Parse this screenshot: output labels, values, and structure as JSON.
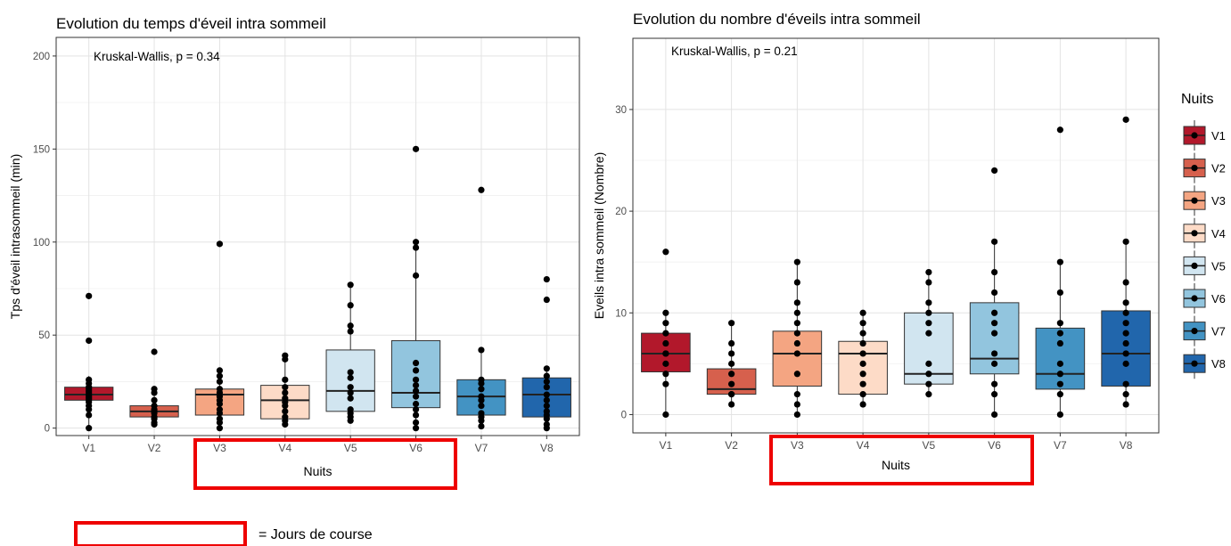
{
  "chart_data": [
    {
      "type": "box",
      "title": "Evolution du temps d'éveil intra sommeil",
      "annotation": "Kruskal-Wallis, p = 0.34",
      "xlabel": "Nuits",
      "ylabel": "Tps d'éveil intrasommeil (min)",
      "ylim": [
        -4,
        210
      ],
      "yticks": [
        0,
        50,
        100,
        150,
        200
      ],
      "grid": true,
      "categories": [
        "V1",
        "V2",
        "V3",
        "V4",
        "V5",
        "V6",
        "V7",
        "V8"
      ],
      "colors": [
        "#B2182B",
        "#D6604D",
        "#F4A582",
        "#FDDBC7",
        "#D1E5F0",
        "#92C5DE",
        "#4393C3",
        "#2166AC"
      ],
      "boxes": [
        {
          "q1": 15,
          "median": 18,
          "q3": 22,
          "lo": 0,
          "hi": 28,
          "points": [
            0,
            7,
            10,
            12,
            14,
            15,
            16,
            17,
            18,
            19,
            20,
            21,
            22,
            24,
            26,
            47,
            71
          ]
        },
        {
          "q1": 6,
          "median": 9,
          "q3": 12,
          "lo": 2,
          "hi": 21,
          "points": [
            2,
            3,
            5,
            6,
            8,
            9,
            10,
            12,
            15,
            19,
            21,
            41
          ]
        },
        {
          "q1": 7,
          "median": 18,
          "q3": 21,
          "lo": 0,
          "hi": 31,
          "points": [
            0,
            3,
            5,
            8,
            10,
            13,
            15,
            17,
            19,
            21,
            25,
            28,
            31,
            99
          ]
        },
        {
          "q1": 5,
          "median": 15,
          "q3": 23,
          "lo": 2,
          "hi": 39,
          "points": [
            2,
            4,
            6,
            9,
            12,
            14,
            16,
            19,
            22,
            26,
            37,
            39
          ]
        },
        {
          "q1": 9,
          "median": 20,
          "q3": 42,
          "lo": 4,
          "hi": 77,
          "points": [
            4,
            6,
            8,
            10,
            16,
            19,
            22,
            27,
            30,
            52,
            55,
            66,
            77
          ]
        },
        {
          "q1": 11,
          "median": 19,
          "q3": 47,
          "lo": 0,
          "hi": 100,
          "points": [
            0,
            3,
            7,
            10,
            13,
            17,
            20,
            23,
            26,
            31,
            35,
            82,
            97,
            100,
            150
          ]
        },
        {
          "q1": 7,
          "median": 17,
          "q3": 26,
          "lo": 1,
          "hi": 42,
          "points": [
            1,
            4,
            6,
            8,
            12,
            15,
            17,
            21,
            24,
            26,
            42,
            128
          ]
        },
        {
          "q1": 6,
          "median": 18,
          "q3": 27,
          "lo": 0,
          "hi": 32,
          "points": [
            0,
            2,
            5,
            7,
            9,
            12,
            15,
            18,
            22,
            25,
            28,
            32,
            69,
            80
          ]
        }
      ]
    },
    {
      "type": "box",
      "title": "Evolution du nombre d'éveils intra sommeil",
      "annotation": "Kruskal-Wallis, p = 0.21",
      "xlabel": "Nuits",
      "ylabel": "Eveils intra sommeil (Nombre)",
      "ylim": [
        -1.8,
        37
      ],
      "yticks": [
        0,
        10,
        20,
        30
      ],
      "grid": true,
      "categories": [
        "V1",
        "V2",
        "V3",
        "V4",
        "V5",
        "V6",
        "V7",
        "V8"
      ],
      "colors": [
        "#B2182B",
        "#D6604D",
        "#F4A582",
        "#FDDBC7",
        "#D1E5F0",
        "#92C5DE",
        "#4393C3",
        "#2166AC"
      ],
      "boxes": [
        {
          "q1": 4.2,
          "median": 6,
          "q3": 8,
          "lo": 0,
          "hi": 10,
          "points": [
            0,
            3,
            4,
            5,
            6,
            6,
            7,
            8,
            9,
            10,
            16
          ]
        },
        {
          "q1": 2,
          "median": 2.5,
          "q3": 4.5,
          "lo": 1,
          "hi": 9,
          "points": [
            1,
            2,
            2,
            3,
            4,
            5,
            6,
            7,
            9
          ]
        },
        {
          "q1": 2.8,
          "median": 6,
          "q3": 8.2,
          "lo": 0,
          "hi": 15,
          "points": [
            0,
            1,
            2,
            4,
            6,
            7,
            8,
            9,
            10,
            11,
            13,
            15
          ]
        },
        {
          "q1": 2,
          "median": 6,
          "q3": 7.2,
          "lo": 1,
          "hi": 10,
          "points": [
            1,
            2,
            3,
            4,
            5,
            6,
            7,
            8,
            9,
            10
          ]
        },
        {
          "q1": 3,
          "median": 4,
          "q3": 10,
          "lo": 2,
          "hi": 14,
          "points": [
            2,
            3,
            4,
            5,
            8,
            9,
            10,
            11,
            13,
            14
          ]
        },
        {
          "q1": 4,
          "median": 5.5,
          "q3": 11,
          "lo": 0,
          "hi": 17,
          "points": [
            0,
            2,
            3,
            5,
            6,
            8,
            9,
            10,
            12,
            14,
            17,
            24
          ]
        },
        {
          "q1": 2.5,
          "median": 4,
          "q3": 8.5,
          "lo": 0,
          "hi": 15,
          "points": [
            0,
            2,
            3,
            4,
            5,
            7,
            8,
            9,
            12,
            15,
            28
          ]
        },
        {
          "q1": 2.8,
          "median": 6,
          "q3": 10.2,
          "lo": 1,
          "hi": 17,
          "points": [
            1,
            2,
            3,
            5,
            6,
            7,
            8,
            9,
            10,
            11,
            13,
            17,
            29
          ]
        }
      ]
    }
  ],
  "legend": {
    "title": "Nuits",
    "entries": [
      "V1",
      "V2",
      "V3",
      "V4",
      "V5",
      "V6",
      "V7",
      "V8"
    ]
  },
  "note": {
    "text": "= Jours de course",
    "highlight_color": "#EE0000"
  }
}
